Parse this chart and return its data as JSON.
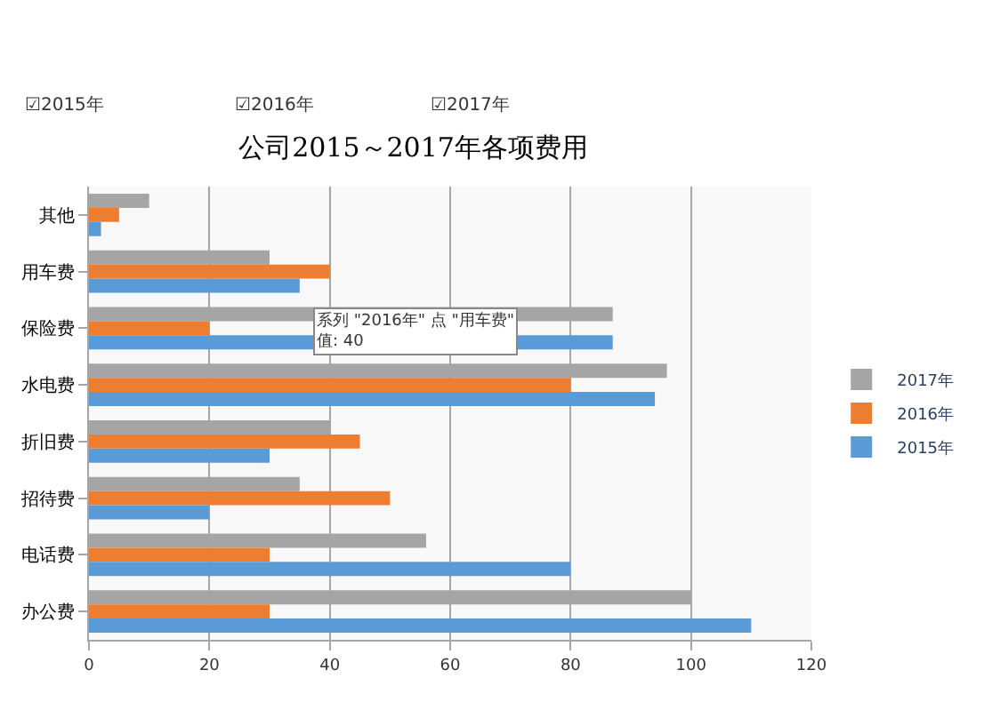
{
  "chart_data": {
    "type": "bar",
    "orientation": "horizontal",
    "title": "公司2015～2017年各项费用",
    "categories": [
      "其他",
      "用车费",
      "保险费",
      "水电费",
      "折旧费",
      "招待费",
      "电话费",
      "办公费"
    ],
    "series": [
      {
        "name": "2017年",
        "color": "#a5a5a5",
        "values": [
          10,
          30,
          87,
          96,
          40,
          35,
          56,
          100
        ]
      },
      {
        "name": "2016年",
        "color": "#ed7d31",
        "values": [
          5,
          40,
          20,
          80,
          45,
          50,
          30,
          30
        ]
      },
      {
        "name": "2015年",
        "color": "#5b9bd5",
        "values": [
          2,
          35,
          87,
          94,
          30,
          20,
          80,
          110
        ]
      }
    ],
    "xlim": [
      0,
      120
    ],
    "xticks": [
      0,
      20,
      40,
      60,
      80,
      100,
      120
    ],
    "grid": "x",
    "legend": "right",
    "annotations": [
      "☑2015年",
      "☑2016年",
      "☑2017年",
      "系列 \"2016年\" 点 \"用车费\"\n值: 40"
    ]
  }
}
